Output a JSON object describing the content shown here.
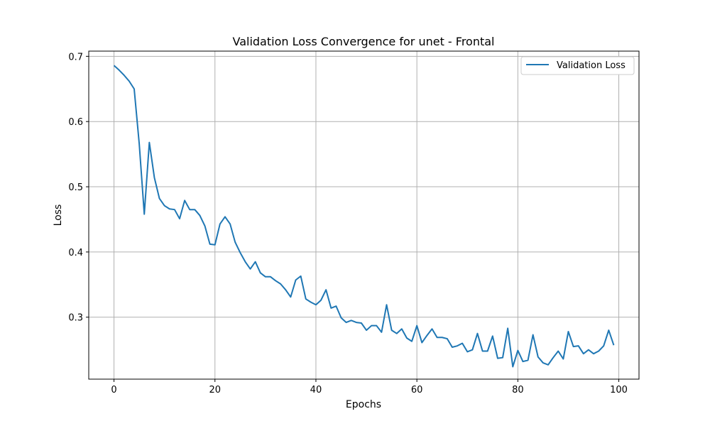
{
  "chart_data": {
    "type": "line",
    "title": "Validation Loss Convergence for unet - Frontal",
    "xlabel": "Epochs",
    "ylabel": "Loss",
    "xlim": [
      -5,
      104
    ],
    "ylim": [
      0.205,
      0.708
    ],
    "xticks": [
      0,
      20,
      40,
      60,
      80,
      100
    ],
    "yticks": [
      0.3,
      0.4,
      0.5,
      0.6,
      0.7
    ],
    "xtick_labels": [
      "0",
      "20",
      "40",
      "60",
      "80",
      "100"
    ],
    "ytick_labels": [
      "0.3",
      "0.4",
      "0.5",
      "0.6",
      "0.7"
    ],
    "grid": true,
    "legend_position": "top-right",
    "series": [
      {
        "name": "Validation Loss",
        "color": "#1f77b4",
        "x": [
          0,
          1,
          2,
          3,
          4,
          5,
          6,
          7,
          8,
          9,
          10,
          11,
          12,
          13,
          14,
          15,
          16,
          17,
          18,
          19,
          20,
          21,
          22,
          23,
          24,
          25,
          26,
          27,
          28,
          29,
          30,
          31,
          32,
          33,
          34,
          35,
          36,
          37,
          38,
          39,
          40,
          41,
          42,
          43,
          44,
          45,
          46,
          47,
          48,
          49,
          50,
          51,
          52,
          53,
          54,
          55,
          56,
          57,
          58,
          59,
          60,
          61,
          62,
          63,
          64,
          65,
          66,
          67,
          68,
          69,
          70,
          71,
          72,
          73,
          74,
          75,
          76,
          77,
          78,
          79,
          80,
          81,
          82,
          83,
          84,
          85,
          86,
          87,
          88,
          89,
          90,
          91,
          92,
          93,
          94,
          95,
          96,
          97,
          98,
          99
        ],
        "values": [
          0.686,
          0.679,
          0.671,
          0.662,
          0.65,
          0.566,
          0.458,
          0.568,
          0.514,
          0.482,
          0.471,
          0.466,
          0.465,
          0.451,
          0.479,
          0.465,
          0.465,
          0.456,
          0.44,
          0.412,
          0.411,
          0.443,
          0.454,
          0.443,
          0.415,
          0.399,
          0.385,
          0.374,
          0.385,
          0.368,
          0.362,
          0.362,
          0.356,
          0.351,
          0.342,
          0.331,
          0.357,
          0.363,
          0.328,
          0.323,
          0.319,
          0.326,
          0.342,
          0.314,
          0.317,
          0.299,
          0.292,
          0.295,
          0.292,
          0.291,
          0.28,
          0.287,
          0.287,
          0.277,
          0.319,
          0.28,
          0.275,
          0.282,
          0.268,
          0.263,
          0.287,
          0.261,
          0.272,
          0.282,
          0.269,
          0.269,
          0.267,
          0.254,
          0.256,
          0.26,
          0.247,
          0.25,
          0.275,
          0.248,
          0.248,
          0.271,
          0.237,
          0.238,
          0.283,
          0.224,
          0.249,
          0.232,
          0.234,
          0.273,
          0.239,
          0.23,
          0.227,
          0.238,
          0.248,
          0.236,
          0.278,
          0.255,
          0.256,
          0.244,
          0.25,
          0.244,
          0.248,
          0.256,
          0.28,
          0.257
        ]
      }
    ]
  }
}
